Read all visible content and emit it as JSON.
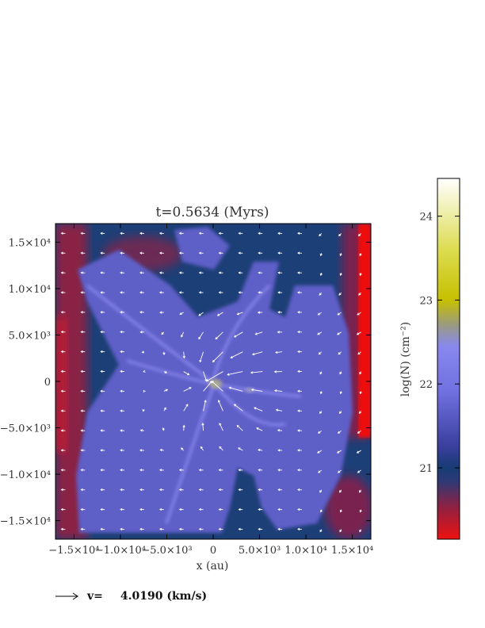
{
  "chart_data": {
    "type": "heatmap",
    "title": "t=0.5634 (Myrs)",
    "xlabel": "x (au)",
    "ylabel": "",
    "xlim": [
      -17000,
      17000
    ],
    "ylim": [
      -17000,
      17000
    ],
    "xticks": [
      {
        "value": -15000,
        "label": "−1.5×10⁴"
      },
      {
        "value": -10000,
        "label": "−1.0×10⁴"
      },
      {
        "value": -5000,
        "label": "−5.0×10³"
      },
      {
        "value": 0,
        "label": "0"
      },
      {
        "value": 5000,
        "label": "5.0×10³"
      },
      {
        "value": 10000,
        "label": "1.0×10⁴"
      },
      {
        "value": 15000,
        "label": "1.5×10⁴"
      }
    ],
    "yticks": [
      {
        "value": 15000,
        "label": "1.5×10⁴"
      },
      {
        "value": 10000,
        "label": "1.0×10⁴"
      },
      {
        "value": 5000,
        "label": "5.0×10³"
      },
      {
        "value": 0,
        "label": "0"
      },
      {
        "value": -5000,
        "label": "−5.0×10³"
      },
      {
        "value": -10000,
        "label": "−1.0×10⁴"
      },
      {
        "value": -15000,
        "label": "−1.5×10⁴"
      }
    ],
    "colorbar": {
      "label": "log(N) (cm⁻²)",
      "range": [
        20.15,
        24.45
      ],
      "ticks": [
        {
          "value": 21,
          "label": "21"
        },
        {
          "value": 22,
          "label": "22"
        },
        {
          "value": 23,
          "label": "23"
        },
        {
          "value": 24,
          "label": "24"
        }
      ],
      "stops": [
        {
          "value": 20.15,
          "color": "#ee1111"
        },
        {
          "value": 20.55,
          "color": "#8a2244"
        },
        {
          "value": 20.85,
          "color": "#2c3a78"
        },
        {
          "value": 21.0,
          "color": "#173c74"
        },
        {
          "value": 21.25,
          "color": "#3a3e9c"
        },
        {
          "value": 21.9,
          "color": "#7070e0"
        },
        {
          "value": 22.45,
          "color": "#8888ee"
        },
        {
          "value": 22.7,
          "color": "#9a9a82"
        },
        {
          "value": 23.0,
          "color": "#c6c000"
        },
        {
          "value": 23.6,
          "color": "#dcdc50"
        },
        {
          "value": 24.45,
          "color": "#ffffff"
        }
      ]
    },
    "regions": [
      {
        "kind": "background",
        "logN": 21.0
      },
      {
        "kind": "edge-left",
        "logN": 20.5
      },
      {
        "kind": "edge-right",
        "logN": 20.3
      },
      {
        "kind": "filament-network",
        "logN": 21.6
      },
      {
        "kind": "central-core",
        "logN": 22.6
      }
    ],
    "velocity_legend": {
      "label": "v=",
      "value": "4.0190",
      "unit": "(km/s)"
    }
  }
}
